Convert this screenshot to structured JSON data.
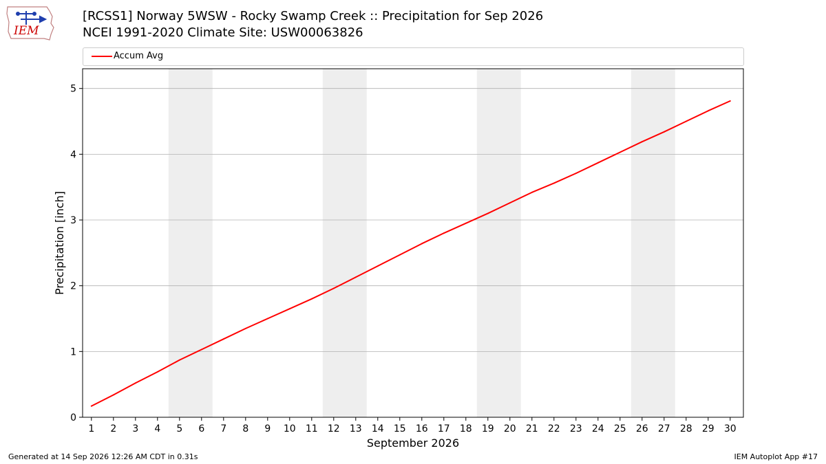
{
  "logo": {
    "text": "IEM"
  },
  "header": {
    "title_line1": "[RCSS1] Norway 5WSW - Rocky Swamp Creek :: Precipitation for Sep 2026",
    "title_line2": "NCEI 1991-2020 Climate Site: USW00063826"
  },
  "footer": {
    "generated": "Generated at 14 Sep 2026 12:26 AM CDT in 0.31s",
    "app": "IEM Autoplot App #17"
  },
  "colors": {
    "series": "#ff0000",
    "weekend_band": "#eeeeee",
    "grid": "#b0b0b0"
  },
  "chart_data": {
    "type": "line",
    "title": "[RCSS1] Norway 5WSW - Rocky Swamp Creek :: Precipitation for Sep 2026",
    "subtitle": "NCEI 1991-2020 Climate Site: USW00063826",
    "xlabel": "September 2026",
    "ylabel": "Precipitation [inch]",
    "xlim": [
      0.6,
      30.6
    ],
    "ylim": [
      0,
      5.3
    ],
    "xticks": [
      1,
      2,
      3,
      4,
      5,
      6,
      7,
      8,
      9,
      10,
      11,
      12,
      13,
      14,
      15,
      16,
      17,
      18,
      19,
      20,
      21,
      22,
      23,
      24,
      25,
      26,
      27,
      28,
      29,
      30
    ],
    "yticks": [
      0,
      1,
      2,
      3,
      4,
      5
    ],
    "grid": "horizontal",
    "legend_placement": "top",
    "shaded_ranges": [
      [
        4.5,
        6.5
      ],
      [
        11.5,
        13.5
      ],
      [
        18.5,
        20.5
      ],
      [
        25.5,
        27.5
      ]
    ],
    "series": [
      {
        "name": "Accum Avg",
        "color": "#ff0000",
        "x": [
          1,
          2,
          3,
          4,
          5,
          6,
          7,
          8,
          9,
          10,
          11,
          12,
          13,
          14,
          15,
          16,
          17,
          18,
          19,
          20,
          21,
          22,
          23,
          24,
          25,
          26,
          27,
          28,
          29,
          30
        ],
        "values": [
          0.17,
          0.34,
          0.52,
          0.69,
          0.87,
          1.03,
          1.19,
          1.35,
          1.5,
          1.65,
          1.8,
          1.96,
          2.13,
          2.3,
          2.47,
          2.64,
          2.8,
          2.95,
          3.1,
          3.26,
          3.42,
          3.56,
          3.71,
          3.87,
          4.03,
          4.19,
          4.34,
          4.5,
          4.66,
          4.81
        ]
      }
    ]
  }
}
